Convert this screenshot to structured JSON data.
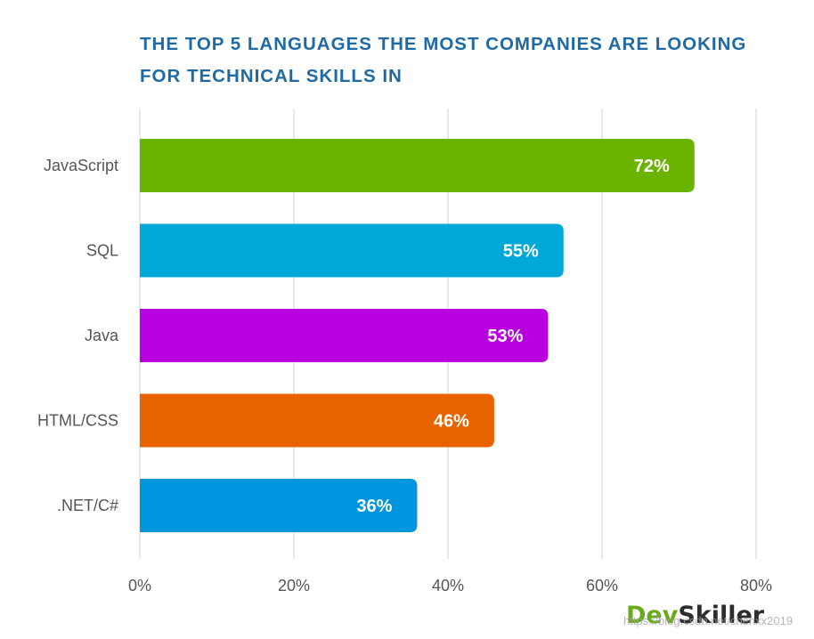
{
  "chart_data": {
    "type": "bar",
    "orientation": "horizontal",
    "title": "THE TOP 5 LANGUAGES THE MOST COMPANIES ARE LOOKING FOR TECHNICAL SKILLS IN",
    "categories": [
      "JavaScript",
      "SQL",
      "Java",
      "HTML/CSS",
      ".NET/C#"
    ],
    "values": [
      72,
      55,
      53,
      46,
      36
    ],
    "value_labels": [
      "72%",
      "55%",
      "53%",
      "46%",
      "36%"
    ],
    "colors": [
      "#6ab400",
      "#00a8d8",
      "#b800e0",
      "#e86200",
      "#0095de"
    ],
    "xlim": [
      0,
      80
    ],
    "x_ticks": [
      0,
      20,
      40,
      60,
      80
    ],
    "x_tick_labels": [
      "0%",
      "20%",
      "40%",
      "60%",
      "80%"
    ],
    "xlabel": "",
    "ylabel": "",
    "grid": true
  },
  "branding": {
    "logo_part1": "Dev",
    "logo_part2": "Skiller",
    "watermark": "https://blog.csdn.net/chenxx2019"
  }
}
